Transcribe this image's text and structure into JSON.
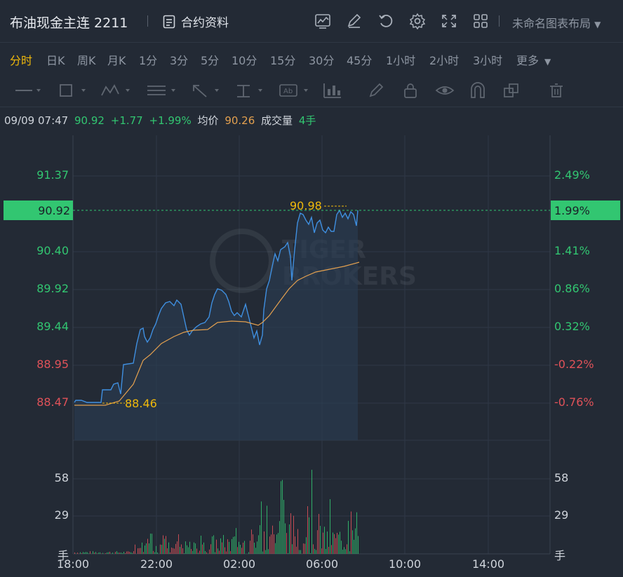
{
  "header": {
    "title": "布油现金主连 2211",
    "contract_label": "合约资料",
    "layout_label": "未命名图表布局",
    "icons": [
      "indicator-icon",
      "draw-icon",
      "undo-icon",
      "gear-icon",
      "fullscreen-icon",
      "grid-icon"
    ]
  },
  "intervals": {
    "items": [
      "分时",
      "日K",
      "周K",
      "月K",
      "1分",
      "3分",
      "5分",
      "10分",
      "15分",
      "30分",
      "45分",
      "1小时",
      "2小时",
      "3小时",
      "更多"
    ],
    "active": "分时"
  },
  "tools": [
    "line-tool-icon",
    "rect-tool-icon",
    "pattern-tool-icon",
    "fib-tool-icon",
    "arrow-tool-icon",
    "measure-tool-icon",
    "text-tool-icon",
    "chart-tool-icon",
    "pen-tool-icon",
    "lock-icon",
    "eye-icon",
    "magnet-icon",
    "copy-icon",
    "trash-icon"
  ],
  "info": {
    "datetime": "09/09 07:47",
    "price": "90.92",
    "change": "+1.77",
    "change_pct": "+1.99%",
    "avg_label": "均价",
    "avg_value": "90.26",
    "volume_label": "成交量",
    "volume_value": "4手"
  },
  "chart_data": {
    "type": "line",
    "price_axis": {
      "left": [
        "91.37",
        "90.40",
        "89.92",
        "89.44",
        "88.95",
        "88.47"
      ],
      "right": [
        "2.49%",
        "1.41%",
        "0.86%",
        "0.32%",
        "-0.22%",
        "-0.76%"
      ],
      "current_price": "90.92",
      "current_pct": "1.99%"
    },
    "high_label": "90.98",
    "low_label": "88.46",
    "volume_axis": {
      "left": [
        "58",
        "29",
        "手"
      ],
      "right": [
        "58",
        "29",
        "手"
      ]
    },
    "x_ticks": [
      "18:00",
      "22:00",
      "02:00",
      "06:00",
      "10:00",
      "14:00"
    ],
    "watermark": "TIGER BROKERS",
    "colors": {
      "price_line": "#3f8fe0",
      "avg_line": "#e3a04f",
      "up": "#32c671",
      "down": "#e05259",
      "accent": "#f0b90b"
    }
  }
}
